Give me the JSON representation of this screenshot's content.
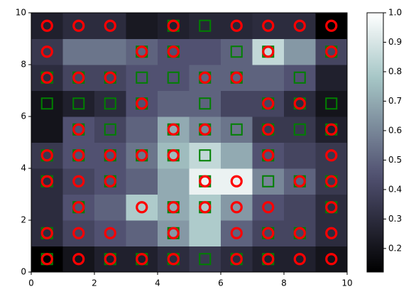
{
  "chart_data": {
    "type": "heatmap",
    "xlim": [
      0,
      10
    ],
    "ylim": [
      0,
      10
    ],
    "xticks": [
      0,
      2,
      4,
      6,
      8,
      10
    ],
    "yticks": [
      0,
      2,
      4,
      6,
      8,
      10
    ],
    "colormap": "bone",
    "clim": [
      0.12,
      1.0
    ],
    "cticks": [
      0.2,
      0.3,
      0.4,
      0.5,
      0.6,
      0.7,
      0.8,
      0.9,
      {
        "value": 1.0,
        "label": "1.0"
      }
    ],
    "z": [
      [
        0.12,
        0.2,
        0.25,
        0.25,
        0.3,
        0.35,
        0.3,
        0.25,
        0.25,
        0.2
      ],
      [
        0.3,
        0.4,
        0.45,
        0.5,
        0.65,
        0.8,
        0.5,
        0.4,
        0.4,
        0.3
      ],
      [
        0.3,
        0.45,
        0.5,
        0.8,
        0.7,
        0.8,
        0.65,
        0.45,
        0.4,
        0.3
      ],
      [
        0.3,
        0.4,
        0.45,
        0.5,
        0.7,
        0.95,
        0.95,
        0.6,
        0.5,
        0.35
      ],
      [
        0.35,
        0.45,
        0.45,
        0.55,
        0.75,
        0.85,
        0.7,
        0.45,
        0.4,
        0.35
      ],
      [
        0.2,
        0.45,
        0.4,
        0.5,
        0.7,
        0.6,
        0.55,
        0.35,
        0.35,
        0.25
      ],
      [
        0.2,
        0.25,
        0.3,
        0.45,
        0.5,
        0.5,
        0.4,
        0.4,
        0.3,
        0.2
      ],
      [
        0.3,
        0.4,
        0.4,
        0.45,
        0.45,
        0.5,
        0.5,
        0.5,
        0.45,
        0.25
      ],
      [
        0.35,
        0.55,
        0.55,
        0.5,
        0.45,
        0.45,
        0.5,
        0.85,
        0.65,
        0.4
      ],
      [
        0.25,
        0.3,
        0.3,
        0.22,
        0.25,
        0.28,
        0.28,
        0.3,
        0.3,
        0.12
      ]
    ],
    "series": [
      {
        "marker": "square",
        "color": "#008000",
        "x": [
          4.5,
          5.5,
          3.5,
          4.5,
          6.5,
          7.5,
          9.5,
          0.5,
          1.5,
          2.5,
          3.5,
          4.5,
          5.5,
          6.5,
          8.5,
          0.5,
          1.5,
          2.5,
          3.5,
          5.5,
          7.5,
          8.5,
          9.5,
          1.5,
          2.5,
          4.5,
          5.5,
          6.5,
          7.5,
          8.5,
          9.5,
          0.5,
          1.5,
          2.5,
          3.5,
          4.5,
          5.5,
          7.5,
          0.5,
          2.5,
          5.5,
          7.5,
          8.5,
          9.5,
          1.5,
          4.5,
          5.5,
          9.5,
          0.5,
          4.5,
          7.5,
          8.5,
          0.5,
          2.5,
          3.5,
          4.5,
          5.5,
          6.5,
          7.5
        ],
        "y": [
          9.5,
          9.5,
          8.5,
          8.5,
          8.5,
          8.5,
          8.5,
          7.5,
          7.5,
          7.5,
          7.5,
          7.5,
          7.5,
          7.5,
          7.5,
          6.5,
          6.5,
          6.5,
          6.5,
          6.5,
          6.5,
          6.5,
          6.5,
          5.5,
          5.5,
          5.5,
          5.5,
          5.5,
          5.5,
          5.5,
          5.5,
          4.5,
          4.5,
          4.5,
          4.5,
          4.5,
          4.5,
          4.5,
          3.5,
          3.5,
          3.5,
          3.5,
          3.5,
          3.5,
          2.5,
          2.5,
          2.5,
          2.5,
          1.5,
          1.5,
          1.5,
          1.5,
          0.5,
          0.5,
          0.5,
          0.5,
          0.5,
          0.5,
          0.5
        ]
      },
      {
        "marker": "circle",
        "color": "#ff0000",
        "x": [
          0.5,
          1.5,
          2.5,
          4.5,
          6.5,
          7.5,
          8.5,
          9.5,
          0.5,
          3.5,
          4.5,
          7.5,
          9.5,
          0.5,
          1.5,
          2.5,
          5.5,
          6.5,
          3.5,
          7.5,
          8.5,
          1.5,
          4.5,
          5.5,
          7.5,
          9.5,
          0.5,
          1.5,
          2.5,
          3.5,
          4.5,
          7.5,
          9.5,
          0.5,
          1.5,
          2.5,
          5.5,
          6.5,
          8.5,
          9.5,
          1.5,
          3.5,
          4.5,
          5.5,
          6.5,
          7.5,
          9.5,
          0.5,
          1.5,
          2.5,
          4.5,
          6.5,
          7.5,
          8.5,
          9.5,
          0.5,
          1.5,
          2.5,
          3.5,
          4.5,
          6.5,
          7.5,
          8.5,
          9.5
        ],
        "y": [
          9.5,
          9.5,
          9.5,
          9.5,
          9.5,
          9.5,
          9.5,
          9.5,
          8.5,
          8.5,
          8.5,
          8.5,
          8.5,
          7.5,
          7.5,
          7.5,
          7.5,
          7.5,
          6.5,
          6.5,
          6.5,
          5.5,
          5.5,
          5.5,
          5.5,
          5.5,
          4.5,
          4.5,
          4.5,
          4.5,
          4.5,
          4.5,
          4.5,
          3.5,
          3.5,
          3.5,
          3.5,
          3.5,
          3.5,
          3.5,
          2.5,
          2.5,
          2.5,
          2.5,
          2.5,
          2.5,
          2.5,
          1.5,
          1.5,
          1.5,
          1.5,
          1.5,
          1.5,
          1.5,
          1.5,
          0.5,
          0.5,
          0.5,
          0.5,
          0.5,
          0.5,
          0.5,
          0.5,
          0.5
        ]
      }
    ]
  }
}
